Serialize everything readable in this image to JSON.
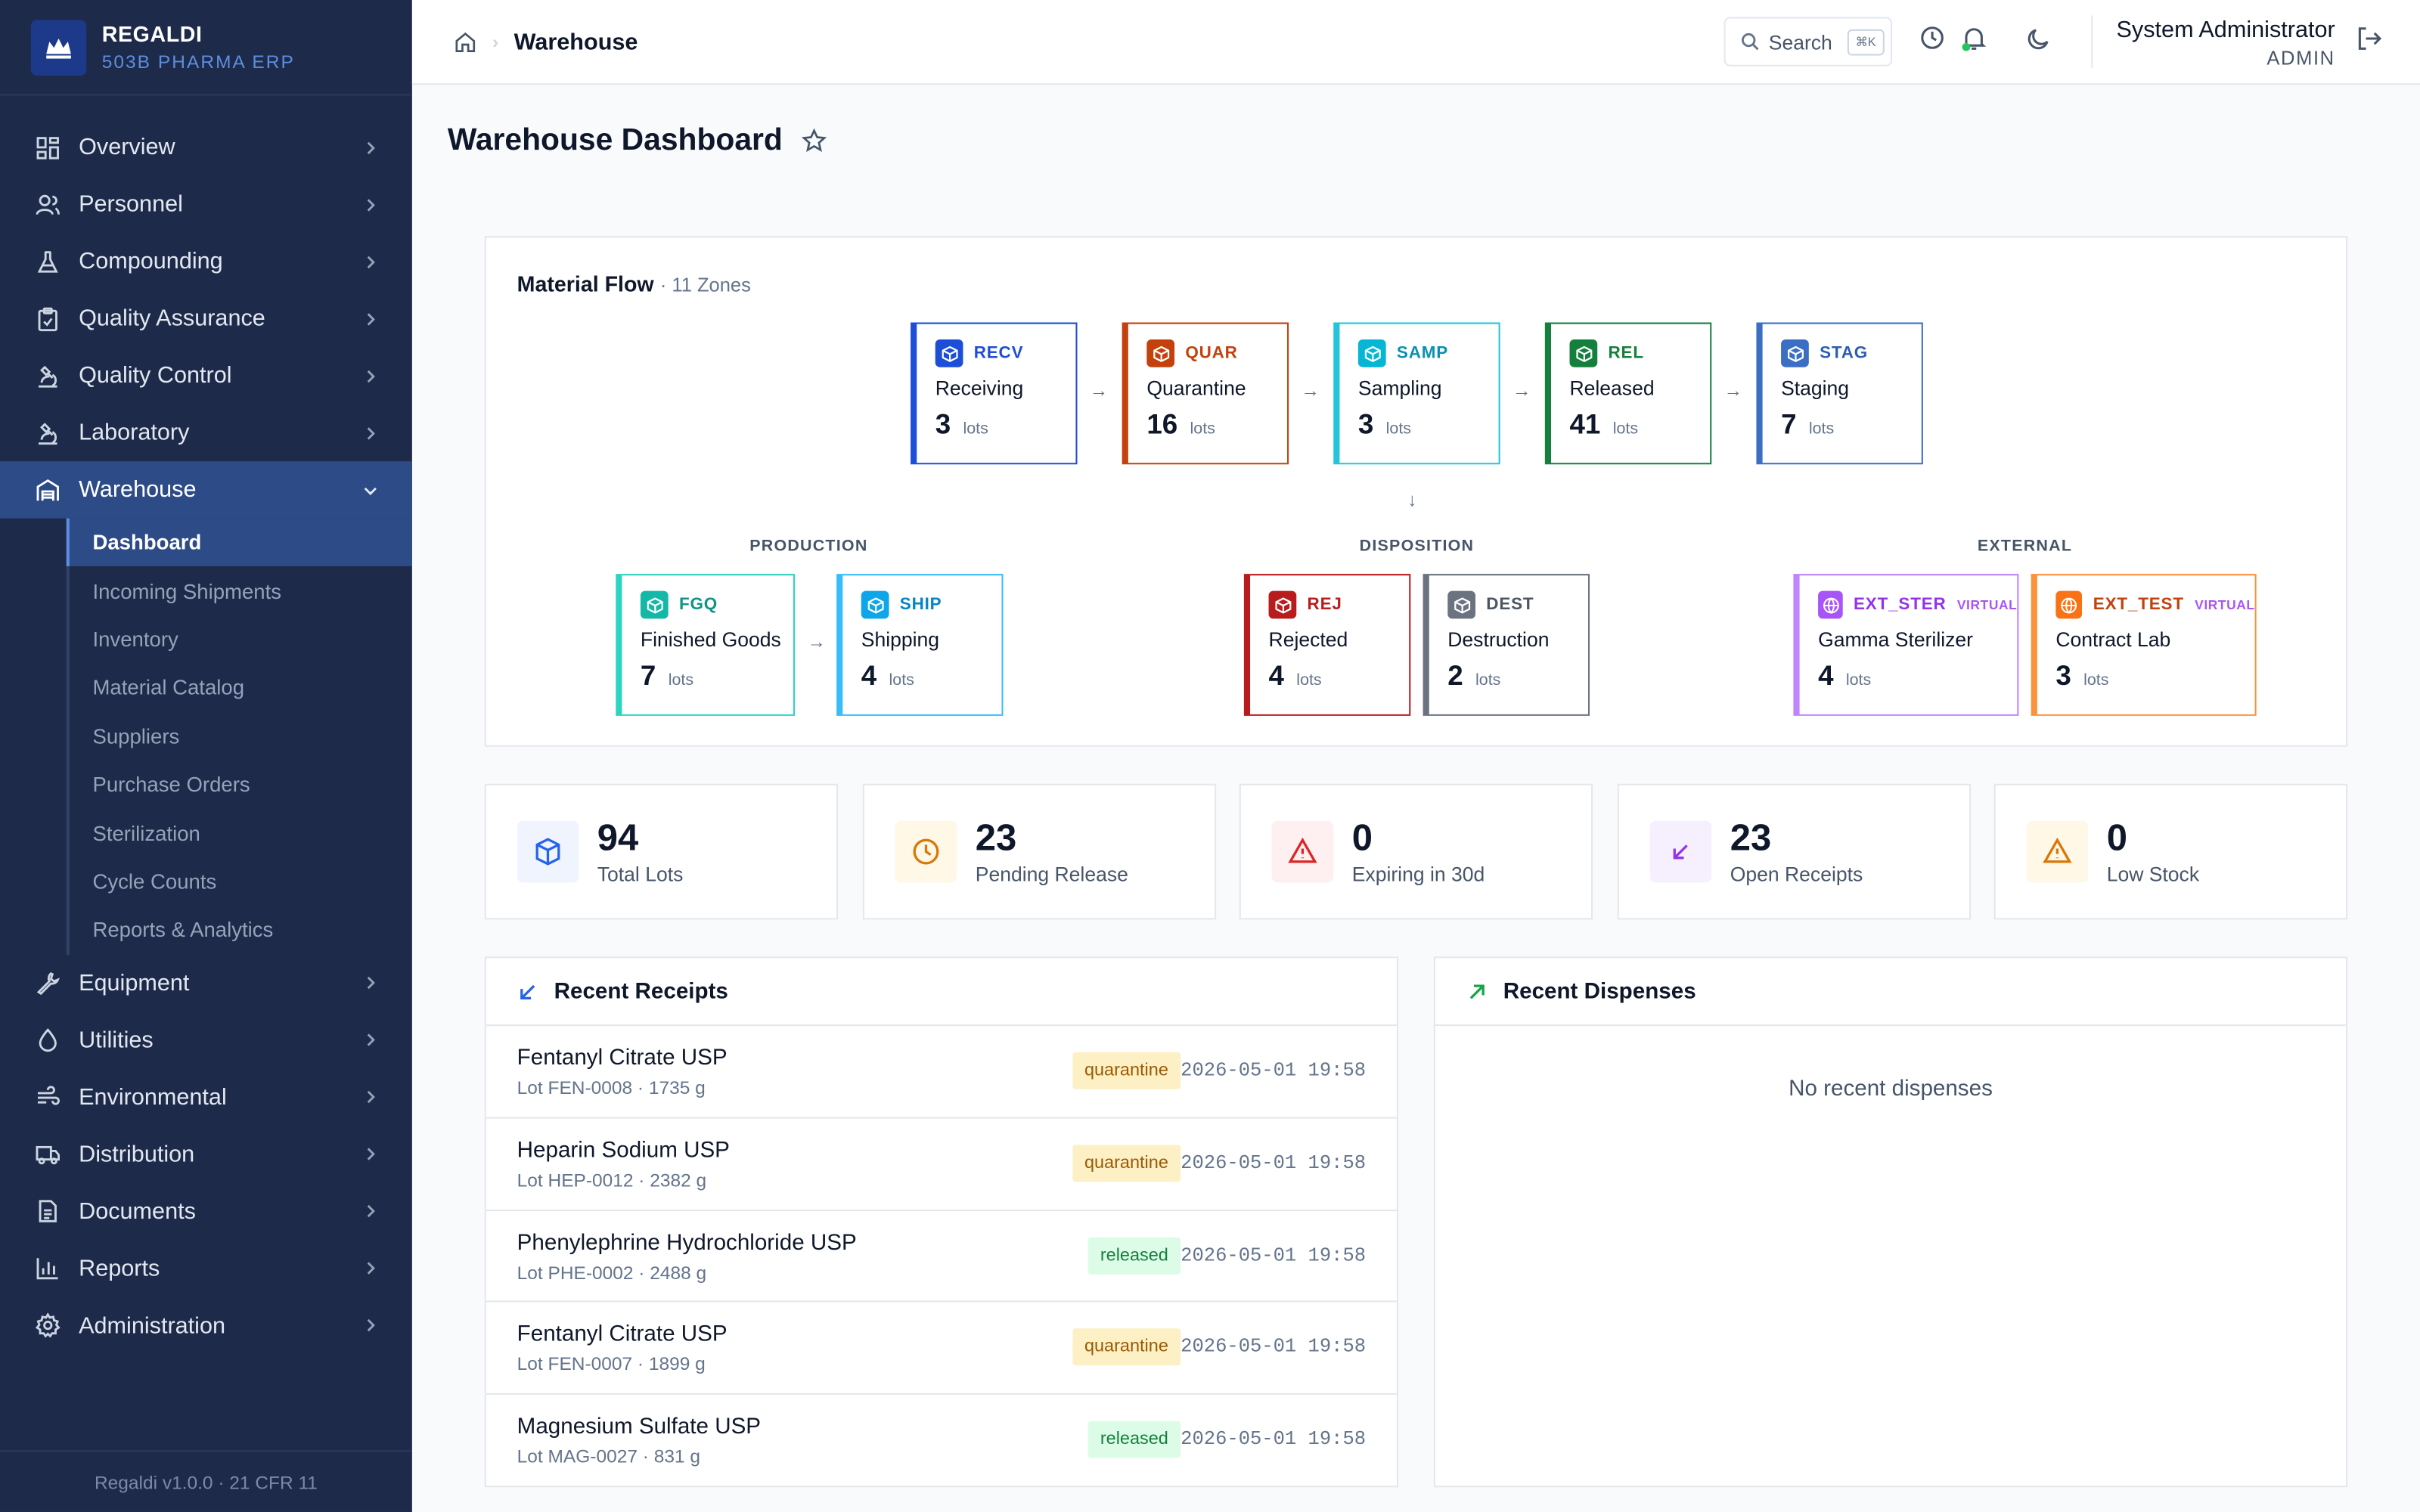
{
  "brand": {
    "name": "REGALDI",
    "subtitle": "503B PHARMA ERP"
  },
  "sidebar": {
    "items": [
      {
        "label": "Overview",
        "icon": "dashboard-icon"
      },
      {
        "label": "Personnel",
        "icon": "users-icon"
      },
      {
        "label": "Compounding",
        "icon": "flask-icon"
      },
      {
        "label": "Quality Assurance",
        "icon": "clipboard-check-icon"
      },
      {
        "label": "Quality Control",
        "icon": "microscope-icon"
      },
      {
        "label": "Laboratory",
        "icon": "microscope-icon"
      },
      {
        "label": "Warehouse",
        "icon": "warehouse-icon",
        "expanded": true
      }
    ],
    "warehouse_sub": [
      "Dashboard",
      "Incoming Shipments",
      "Inventory",
      "Material Catalog",
      "Suppliers",
      "Purchase Orders",
      "Sterilization",
      "Cycle Counts",
      "Reports & Analytics"
    ],
    "items_after": [
      {
        "label": "Equipment",
        "icon": "wrench-icon"
      },
      {
        "label": "Utilities",
        "icon": "droplet-icon"
      },
      {
        "label": "Environmental",
        "icon": "wind-icon"
      },
      {
        "label": "Distribution",
        "icon": "truck-icon"
      },
      {
        "label": "Documents",
        "icon": "file-icon"
      },
      {
        "label": "Reports",
        "icon": "bar-chart-icon"
      },
      {
        "label": "Administration",
        "icon": "gear-icon"
      }
    ],
    "footer": "Regaldi v1.0.0 · 21 CFR 11"
  },
  "header": {
    "breadcrumb": "Warehouse",
    "search_label": "Search",
    "search_kbd": "⌘K",
    "user_name": "System Administrator",
    "user_role": "ADMIN"
  },
  "page": {
    "title": "Warehouse Dashboard"
  },
  "flow": {
    "title": "Material Flow",
    "subtitle": "· 11 Zones",
    "zones": {
      "recv": {
        "code": "RECV",
        "name": "Receiving",
        "count": "3",
        "unit": "lots"
      },
      "quar": {
        "code": "QUAR",
        "name": "Quarantine",
        "count": "16",
        "unit": "lots"
      },
      "samp": {
        "code": "SAMP",
        "name": "Sampling",
        "count": "3",
        "unit": "lots"
      },
      "rel": {
        "code": "REL",
        "name": "Released",
        "count": "41",
        "unit": "lots"
      },
      "stag": {
        "code": "STAG",
        "name": "Staging",
        "count": "7",
        "unit": "lots"
      },
      "fgq": {
        "code": "FGQ",
        "name": "Finished Goods",
        "count": "7",
        "unit": "lots"
      },
      "ship": {
        "code": "SHIP",
        "name": "Shipping",
        "count": "4",
        "unit": "lots"
      },
      "rej": {
        "code": "REJ",
        "name": "Rejected",
        "count": "4",
        "unit": "lots"
      },
      "dest": {
        "code": "DEST",
        "name": "Destruction",
        "count": "2",
        "unit": "lots"
      },
      "ext_ster": {
        "code": "EXT_STER",
        "tag": "VIRTUAL",
        "name": "Gamma Sterilizer",
        "count": "4",
        "unit": "lots"
      },
      "ext_test": {
        "code": "EXT_TEST",
        "tag": "VIRTUAL",
        "name": "Contract Lab",
        "count": "3",
        "unit": "lots"
      }
    },
    "groups": {
      "production": "PRODUCTION",
      "disposition": "DISPOSITION",
      "external": "EXTERNAL"
    }
  },
  "stats": [
    {
      "value": "94",
      "label": "Total Lots",
      "icon": "box-icon",
      "color": "#2563eb"
    },
    {
      "value": "23",
      "label": "Pending Release",
      "icon": "clock-icon",
      "color": "#d97706"
    },
    {
      "value": "0",
      "label": "Expiring in 30d",
      "icon": "alert-icon",
      "color": "#dc2626"
    },
    {
      "value": "23",
      "label": "Open Receipts",
      "icon": "arrow-down-left-icon",
      "color": "#9333ea"
    },
    {
      "value": "0",
      "label": "Low Stock",
      "icon": "alert-icon",
      "color": "#d97706"
    }
  ],
  "receipts": {
    "title": "Recent Receipts",
    "rows": [
      {
        "name": "Fentanyl Citrate USP",
        "lot": "Lot FEN-0008 · 1735 g",
        "status": "quarantine",
        "time": "2026-05-01 19:58"
      },
      {
        "name": "Heparin Sodium USP",
        "lot": "Lot HEP-0012 · 2382 g",
        "status": "quarantine",
        "time": "2026-05-01 19:58"
      },
      {
        "name": "Phenylephrine Hydrochloride USP",
        "lot": "Lot PHE-0002 · 2488 g",
        "status": "released",
        "time": "2026-05-01 19:58"
      },
      {
        "name": "Fentanyl Citrate USP",
        "lot": "Lot FEN-0007 · 1899 g",
        "status": "quarantine",
        "time": "2026-05-01 19:58"
      },
      {
        "name": "Magnesium Sulfate USP",
        "lot": "Lot MAG-0027 · 831 g",
        "status": "released",
        "time": "2026-05-01 19:58"
      }
    ]
  },
  "dispenses": {
    "title": "Recent Dispenses",
    "empty": "No recent dispenses"
  }
}
